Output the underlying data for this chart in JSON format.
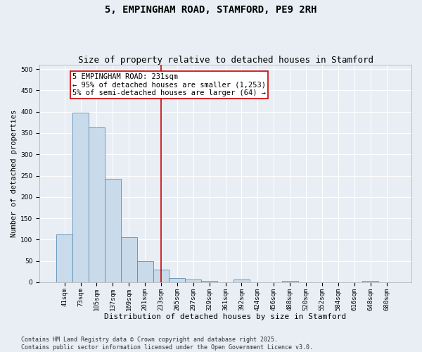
{
  "title": "5, EMPINGHAM ROAD, STAMFORD, PE9 2RH",
  "subtitle": "Size of property relative to detached houses in Stamford",
  "xlabel": "Distribution of detached houses by size in Stamford",
  "ylabel": "Number of detached properties",
  "categories": [
    "41sqm",
    "73sqm",
    "105sqm",
    "137sqm",
    "169sqm",
    "201sqm",
    "233sqm",
    "265sqm",
    "297sqm",
    "329sqm",
    "361sqm",
    "392sqm",
    "424sqm",
    "456sqm",
    "488sqm",
    "520sqm",
    "552sqm",
    "584sqm",
    "616sqm",
    "648sqm",
    "680sqm"
  ],
  "values": [
    112,
    397,
    363,
    243,
    105,
    49,
    29,
    10,
    7,
    4,
    0,
    6,
    0,
    0,
    3,
    0,
    0,
    0,
    0,
    3,
    0
  ],
  "bar_color": "#c9daea",
  "bar_edge_color": "#5a8db5",
  "vline_x": 6,
  "vline_color": "#cc0000",
  "annotation_text": "5 EMPINGHAM ROAD: 231sqm\n← 95% of detached houses are smaller (1,253)\n5% of semi-detached houses are larger (64) →",
  "annotation_box_color": "#ffffff",
  "annotation_box_edge_color": "#cc0000",
  "ylim": [
    0,
    510
  ],
  "yticks": [
    0,
    50,
    100,
    150,
    200,
    250,
    300,
    350,
    400,
    450,
    500
  ],
  "background_color": "#e8eef4",
  "grid_color": "#ffffff",
  "footer": "Contains HM Land Registry data © Crown copyright and database right 2025.\nContains public sector information licensed under the Open Government Licence v3.0.",
  "title_fontsize": 10,
  "subtitle_fontsize": 9,
  "xlabel_fontsize": 8,
  "ylabel_fontsize": 7.5,
  "tick_fontsize": 6.5,
  "annotation_fontsize": 7.5,
  "footer_fontsize": 6
}
